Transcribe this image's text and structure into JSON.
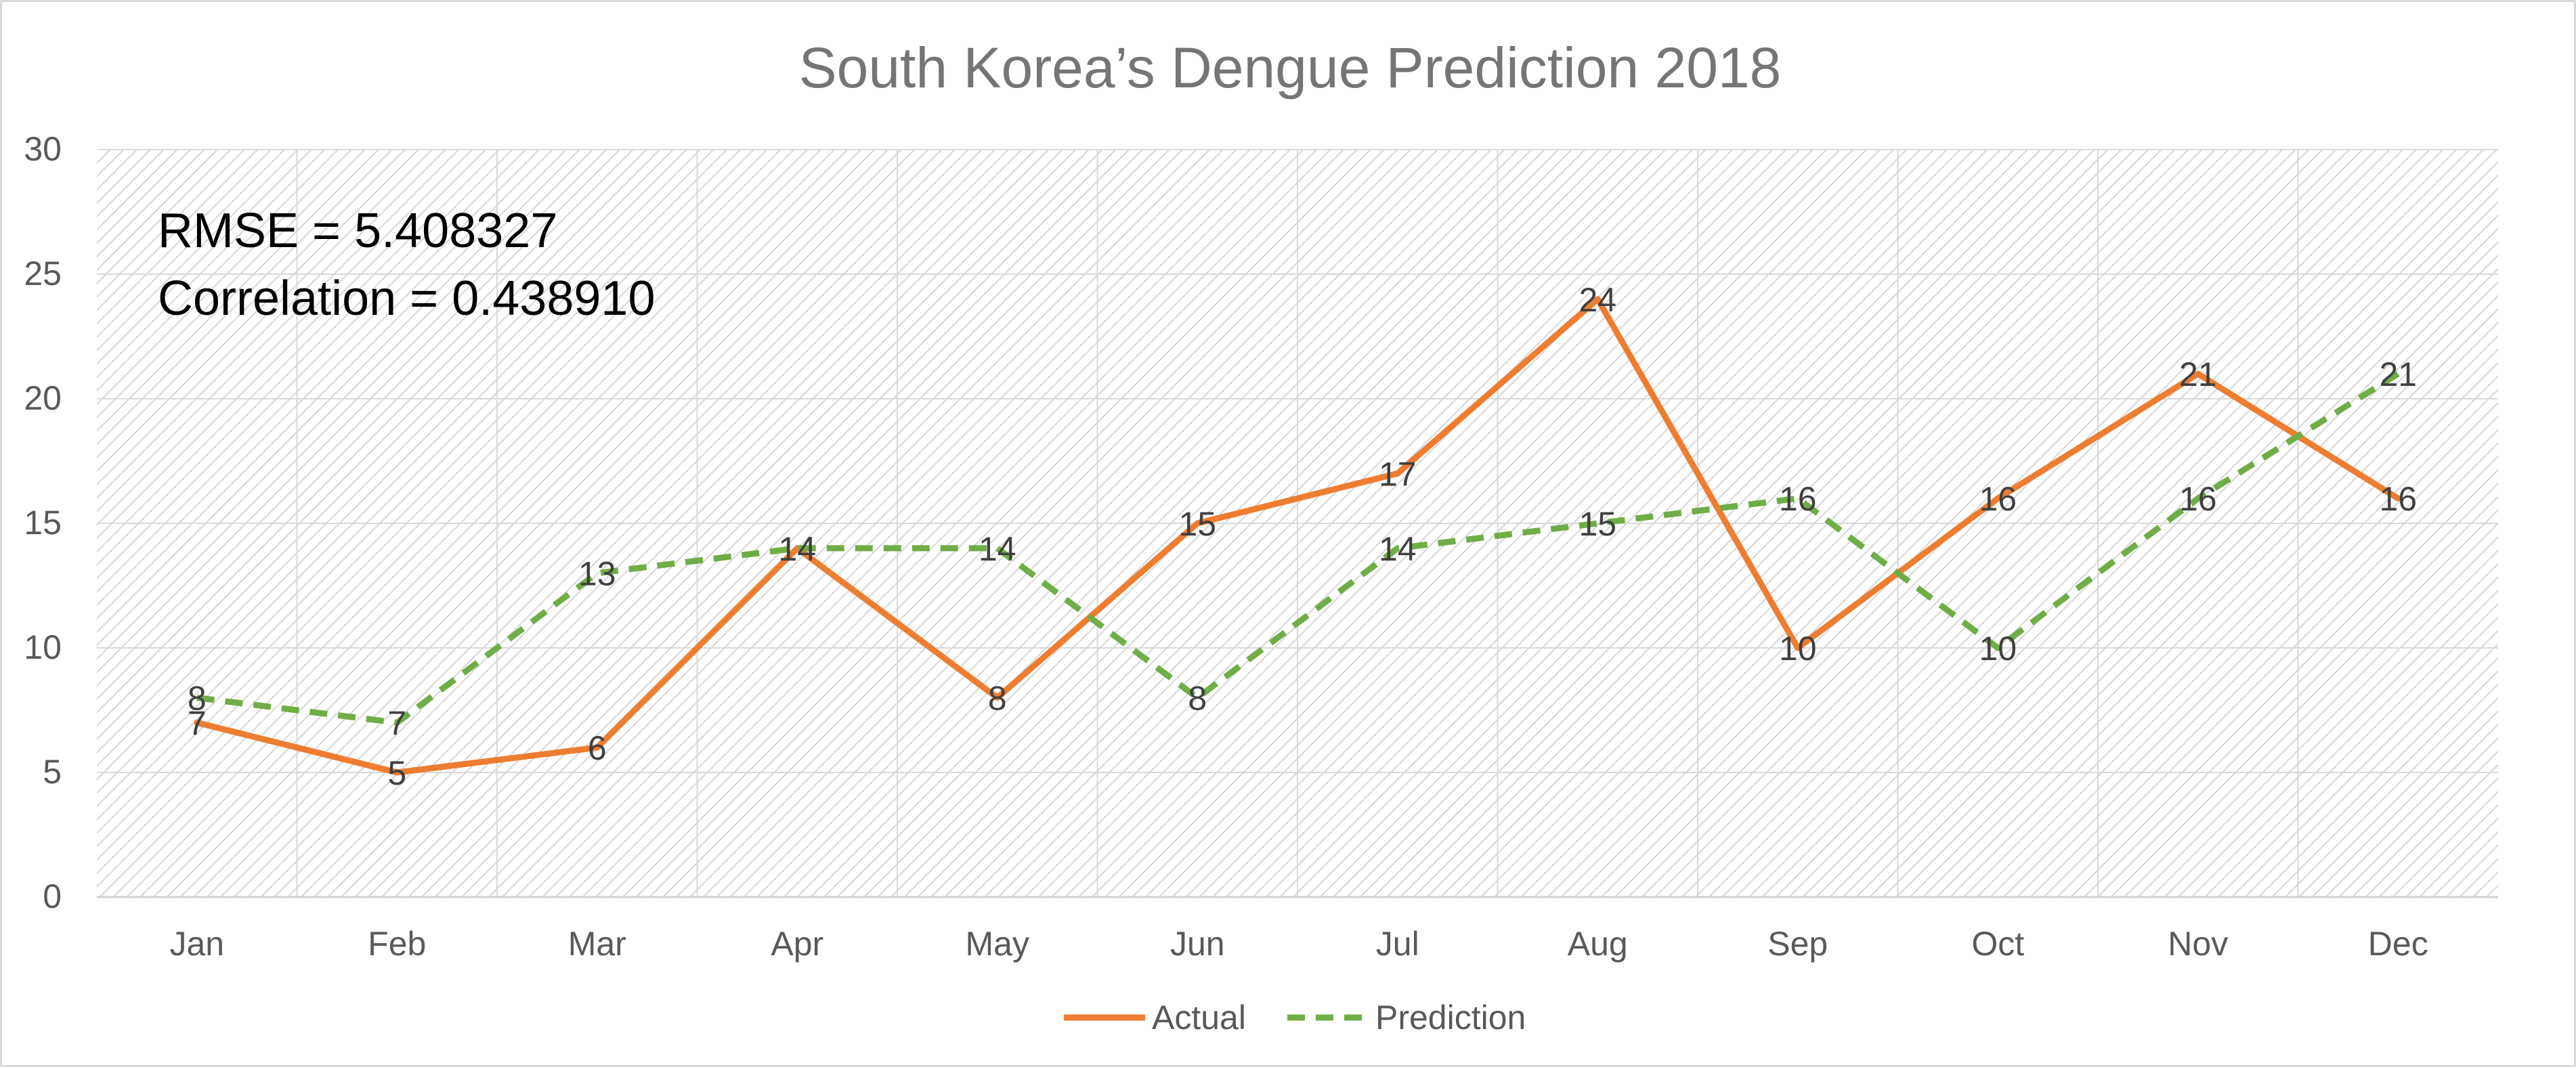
{
  "chart_data": {
    "type": "line",
    "title": "South Korea’s Dengue Prediction 2018",
    "categories": [
      "Jan",
      "Feb",
      "Mar",
      "Apr",
      "May",
      "Jun",
      "Jul",
      "Aug",
      "Sep",
      "Oct",
      "Nov",
      "Dec"
    ],
    "series": [
      {
        "name": "Actual",
        "values": [
          7,
          5,
          6,
          14,
          8,
          15,
          17,
          24,
          10,
          16,
          21,
          16
        ],
        "color": "#ED7D31",
        "line_style": "solid"
      },
      {
        "name": "Prediction",
        "values": [
          8,
          7,
          13,
          14,
          14,
          8,
          14,
          15,
          16,
          10,
          16,
          21
        ],
        "color": "#70AD47",
        "line_style": "dashed"
      }
    ],
    "ylim": [
      0,
      30
    ],
    "yticks": [
      0,
      5,
      10,
      15,
      20,
      25,
      30
    ],
    "grid": true,
    "legend": "bottom-center",
    "annotations": [
      "RMSE = 5.408327",
      "Correlation = 0.438910"
    ]
  },
  "colors": {
    "plot_background_hatch": "#d6d6d6",
    "gridline": "#d9d9d9",
    "axis_line": "#d0d0d0"
  }
}
